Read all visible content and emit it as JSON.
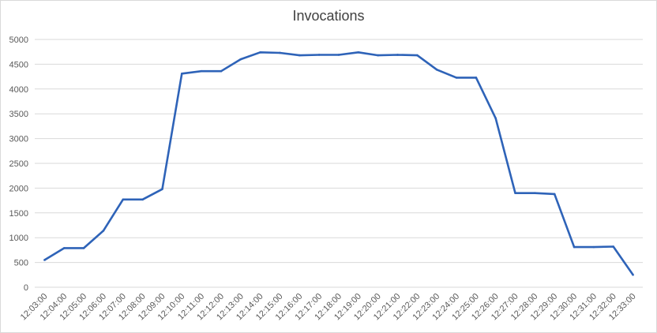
{
  "chart_data": {
    "type": "line",
    "title": "Invocations",
    "xlabel": "",
    "ylabel": "",
    "ylim": [
      0,
      5000
    ],
    "yticks": [
      0,
      500,
      1000,
      1500,
      2000,
      2500,
      3000,
      3500,
      4000,
      4500,
      5000
    ],
    "grid": true,
    "legend": "none",
    "line_color": "#2e63b8",
    "categories": [
      "12:03:00",
      "12:04:00",
      "12:05:00",
      "12:06:00",
      "12:07:00",
      "12:08:00",
      "12:09:00",
      "12:10:00",
      "12:11:00",
      "12:12:00",
      "12:13:00",
      "12:14:00",
      "12:15:00",
      "12:16:00",
      "12:17:00",
      "12:18:00",
      "12:19:00",
      "12:20:00",
      "12:21:00",
      "12:22:00",
      "12:23:00",
      "12:24:00",
      "12:25:00",
      "12:26:00",
      "12:27:00",
      "12:28:00",
      "12:29:00",
      "12:30:00",
      "12:31:00",
      "12:32:00",
      "12:33:00"
    ],
    "values": [
      550,
      790,
      790,
      1140,
      1770,
      1770,
      1980,
      4310,
      4360,
      4360,
      4600,
      4740,
      4730,
      4680,
      4690,
      4690,
      4740,
      4680,
      4690,
      4680,
      4390,
      4230,
      4230,
      3410,
      1900,
      1900,
      1880,
      810,
      810,
      820,
      250
    ]
  }
}
